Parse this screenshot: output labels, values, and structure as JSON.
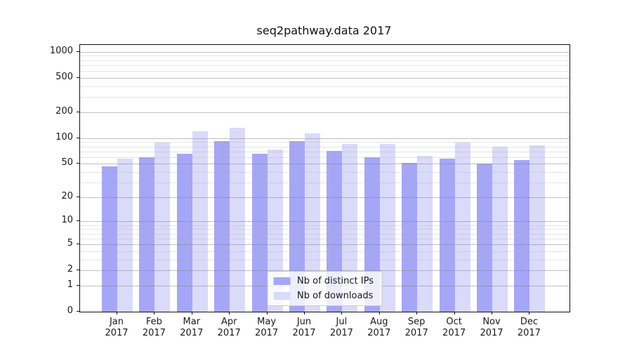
{
  "title": "seq2pathway.data 2017",
  "chart_data": {
    "type": "bar",
    "title": "seq2pathway.data 2017",
    "categories": [
      "Jan 2017",
      "Feb 2017",
      "Mar 2017",
      "Apr 2017",
      "May 2017",
      "Jun 2017",
      "Jul 2017",
      "Aug 2017",
      "Sep 2017",
      "Oct 2017",
      "Nov 2017",
      "Dec 2017"
    ],
    "series": [
      {
        "name": "Nb of distinct IPs",
        "color": "#a6a6f6",
        "values": [
          47,
          60,
          66,
          92,
          65,
          93,
          71,
          60,
          51,
          57,
          50,
          55
        ]
      },
      {
        "name": "Nb of downloads",
        "color": "#dadafa",
        "values": [
          57,
          89,
          121,
          132,
          74,
          114,
          86,
          85,
          62,
          88,
          80,
          82
        ]
      }
    ],
    "xlabel": "",
    "ylabel": "",
    "yscale": "log1p",
    "ylim": [
      0,
      1200
    ],
    "yticks": [
      0,
      1,
      2,
      5,
      10,
      20,
      50,
      100,
      200,
      500,
      1000
    ],
    "minor_yticks": [
      3,
      4,
      6,
      7,
      8,
      9,
      30,
      40,
      60,
      70,
      80,
      90,
      300,
      400,
      600,
      700,
      800,
      900
    ],
    "grid": true,
    "legend_position": "lower center"
  },
  "colors": {
    "bar_ips": "#a6a6f6",
    "bar_downloads": "#dadafa",
    "grid_major": "rgba(130,130,130,0.5)",
    "grid_minor": "rgba(170,170,170,0.3)",
    "spine": "#111111",
    "text": "#1a1a1a",
    "background": "#ffffff",
    "legend_border": "#cccccc"
  }
}
